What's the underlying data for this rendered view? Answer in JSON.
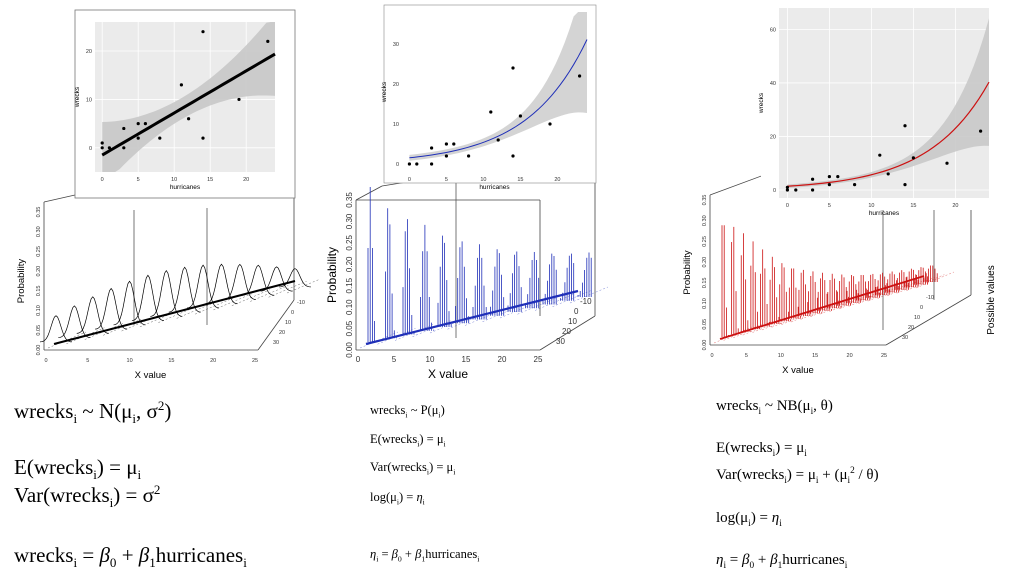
{
  "figures": [
    {
      "model": "normal",
      "color": "#000000",
      "scatter": {
        "xlabel": "hurricanes",
        "ylabel": "wrecks",
        "xticks": [
          "0",
          "5",
          "10",
          "15",
          "20"
        ],
        "yticks": [
          "0",
          "10",
          "20"
        ],
        "xlim": [
          -1,
          24
        ],
        "ylim": [
          -5,
          26
        ],
        "points": [
          [
            0,
            1
          ],
          [
            0,
            0
          ],
          [
            1,
            0
          ],
          [
            3,
            0
          ],
          [
            3,
            4
          ],
          [
            5,
            5
          ],
          [
            5,
            2
          ],
          [
            6,
            5
          ],
          [
            8,
            2
          ],
          [
            11,
            13
          ],
          [
            12,
            6
          ],
          [
            14,
            2
          ],
          [
            14,
            24
          ],
          [
            19,
            10
          ],
          [
            23,
            22
          ]
        ],
        "fit": {
          "type": "linear",
          "intercept": -1.5,
          "slope": 0.87
        }
      },
      "density": {
        "xlabel": "X value",
        "ylabel": "Probability",
        "xticks": [
          "0",
          "5",
          "10",
          "15",
          "20",
          "25"
        ],
        "yticks": [
          "0.00",
          "0.05",
          "0.10",
          "0.15",
          "0.20",
          "0.25",
          "0.30",
          "0.35"
        ],
        "zticks": [
          "-10",
          "0",
          "10",
          "20",
          "30"
        ]
      }
    },
    {
      "model": "poisson",
      "color": "#1f2fb8",
      "scatter": {
        "xlabel": "hurricanes",
        "ylabel": "wrecks",
        "xticks": [
          "0",
          "5",
          "10",
          "15",
          "20"
        ],
        "yticks": [
          "0",
          "10",
          "20",
          "30"
        ],
        "xlim": [
          -1,
          24
        ],
        "ylim": [
          -2,
          38
        ],
        "points": [
          [
            0,
            0
          ],
          [
            1,
            0
          ],
          [
            3,
            0
          ],
          [
            3,
            4
          ],
          [
            5,
            5
          ],
          [
            5,
            2
          ],
          [
            6,
            5
          ],
          [
            8,
            2
          ],
          [
            11,
            13
          ],
          [
            12,
            6
          ],
          [
            14,
            2
          ],
          [
            14,
            24
          ],
          [
            15,
            12
          ],
          [
            19,
            10
          ],
          [
            23,
            22
          ]
        ],
        "fit": {
          "type": "exp",
          "a": 1.55,
          "b": 0.125
        }
      },
      "density": {
        "xlabel": "X value",
        "ylabel": "Probability",
        "xticks": [
          "0",
          "5",
          "10",
          "15",
          "20",
          "25"
        ],
        "yticks": [
          "0.00",
          "0.05",
          "0.10",
          "0.15",
          "0.20",
          "0.25",
          "0.30",
          "0.35"
        ],
        "zticks": [
          "-10",
          "0",
          "10",
          "20",
          "30"
        ]
      }
    },
    {
      "model": "negative-binomial",
      "color": "#cc1111",
      "scatter": {
        "xlabel": "hurricanes",
        "ylabel": "wrecks",
        "xticks": [
          "0",
          "5",
          "10",
          "15",
          "20"
        ],
        "yticks": [
          "0",
          "20",
          "40",
          "60"
        ],
        "xlim": [
          -1,
          24
        ],
        "ylim": [
          -3,
          68
        ],
        "points": [
          [
            0,
            1
          ],
          [
            0,
            0
          ],
          [
            1,
            0
          ],
          [
            3,
            0
          ],
          [
            3,
            4
          ],
          [
            5,
            5
          ],
          [
            5,
            2
          ],
          [
            6,
            5
          ],
          [
            8,
            2
          ],
          [
            11,
            13
          ],
          [
            12,
            6
          ],
          [
            14,
            2
          ],
          [
            14,
            24
          ],
          [
            15,
            12
          ],
          [
            19,
            10
          ],
          [
            23,
            22
          ]
        ],
        "fit": {
          "type": "exp",
          "a": 1.4,
          "b": 0.14
        }
      },
      "density": {
        "xlabel": "X value",
        "ylabel": "Probability",
        "zlabel": "Possible values",
        "xticks": [
          "0",
          "5",
          "10",
          "15",
          "20",
          "25"
        ],
        "yticks": [
          "0.00",
          "0.05",
          "0.10",
          "0.15",
          "0.20",
          "0.25",
          "0.30",
          "0.35"
        ],
        "zticks": [
          "-10",
          "0",
          "10",
          "20",
          "30"
        ]
      }
    }
  ],
  "equations": {
    "normal": {
      "dist_lhs": "wrecks",
      "dist_sub": "i",
      "dist_mid": " ~ N(μ",
      "dist_mid_sub": "i",
      "dist_tail": ", σ",
      "dist_sup": "2",
      "dist_end": ")",
      "mean_lhs": "E(wrecks",
      "mean_sub": "i",
      "mean_rhs": ") = μ",
      "mean_rhs_sub": "i",
      "var_lhs": "Var(wrecks",
      "var_sub": "i",
      "var_rhs": ") = σ",
      "var_sup": "2",
      "lin_lhs": "wrecks",
      "lin_sub": "i",
      "lin_eq": " = ",
      "beta": "β",
      "b0": "0",
      "plus": " + ",
      "b1": "1",
      "pred": "hurricanes",
      "pred_sub": "i"
    },
    "poisson": {
      "dist_lhs": "wrecks",
      "dist_sub": "i",
      "dist_mid": " ~ P(μ",
      "dist_mid_sub": "i",
      "dist_end": ")",
      "mean_lhs": "E(wrecks",
      "mean_sub": "i",
      "mean_rhs": ") = μ",
      "mean_rhs_sub": "i",
      "var_lhs": "Var(wrecks",
      "var_sub": "i",
      "var_rhs": ") = μ",
      "var_rhs_sub": "i",
      "link_lhs": "log(μ",
      "link_sub": "i",
      "link_rhs": ") = ",
      "eta": "η",
      "eta_sub": "i",
      "lin_eq": " = ",
      "beta": "β",
      "b0": "0",
      "plus": " + ",
      "b1": "1",
      "pred": "hurricanes",
      "pred_sub": "i"
    },
    "negbin": {
      "dist_lhs": "wrecks",
      "dist_sub": "i",
      "dist_mid": " ~ NB(μ",
      "dist_mid_sub": "i",
      "dist_end": ", θ)",
      "mean_lhs": "E(wrecks",
      "mean_sub": "i",
      "mean_rhs": ") = μ",
      "mean_rhs_sub": "i",
      "var_lhs": "Var(wrecks",
      "var_sub": "i",
      "var_rhs": ") = μ",
      "var_rhs_sub": "i",
      "var_plus": " + (μ",
      "var_plus_sub": "i",
      "var_plus_sup": "2",
      "var_end": " / θ)",
      "link_lhs": "log(μ",
      "link_sub": "i",
      "link_rhs": ") = ",
      "eta": "η",
      "eta_sub": "i",
      "lin_eq": " = ",
      "beta": "β",
      "b0": "0",
      "plus": " + ",
      "b1": "1",
      "pred": "hurricanes",
      "pred_sub": "i"
    }
  }
}
